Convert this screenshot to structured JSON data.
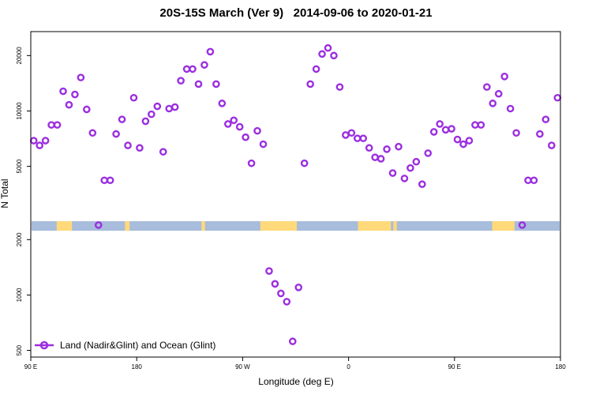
{
  "chart_data": {
    "type": "scatter",
    "title": "20S-15S March (Ver 9)   2014-09-06 to 2020-01-21",
    "xlabel": "Longitude (deg E)",
    "ylabel": "N Total",
    "y_scale": "log",
    "x_ticks": [
      "90 E",
      "180",
      "90 W",
      "0",
      "90 E",
      "180"
    ],
    "x_tick_values": [
      90,
      180,
      270,
      360,
      450,
      540
    ],
    "xlim": [
      90,
      540
    ],
    "y_ticks": [
      500,
      1000,
      2000,
      5000,
      10000,
      20000
    ],
    "ylim": [
      460,
      27000
    ],
    "grid": false,
    "legend": {
      "position": "bottom-left",
      "entries": [
        "Land (Nadir&Glint) and Ocean (Glint)"
      ]
    },
    "colors": {
      "series": "#9b2ee0",
      "ocean": "#a8bcdc",
      "land": "#ffd97a"
    },
    "series": [
      {
        "name": "Land (Nadir&Glint) and Ocean (Glint)",
        "x": [
          92.5,
          97.5,
          102.5,
          107.5,
          112.5,
          117.5,
          122.5,
          127.5,
          132.5,
          137.5,
          142.5,
          147.5,
          152.5,
          157.5,
          162.5,
          167.5,
          172.5,
          177.5,
          182.5,
          187.5,
          192.5,
          197.5,
          202.5,
          207.5,
          212.5,
          217.5,
          222.5,
          227.5,
          232.5,
          237.5,
          242.5,
          247.5,
          252.5,
          257.5,
          262.5,
          267.5,
          272.5,
          277.5,
          282.5,
          287.5,
          292.5,
          297.5,
          302.5,
          307.5,
          312.5,
          317.5,
          322.5,
          327.5,
          332.5,
          337.5,
          342.5,
          347.5,
          352.5,
          357.5,
          362.5,
          367.5,
          372.5,
          377.5,
          382.5,
          387.5,
          392.5,
          397.5,
          402.5,
          407.5,
          412.5,
          417.5,
          422.5,
          427.5,
          432.5,
          437.5,
          442.5,
          447.5,
          452.5,
          457.5,
          462.5,
          467.5,
          472.5,
          477.5,
          482.5,
          487.5,
          492.5,
          497.5,
          502.5,
          507.5,
          512.5,
          517.5,
          522.5,
          527.5,
          532.5,
          537.5
        ],
        "y": [
          6900,
          6500,
          6900,
          8400,
          8400,
          12800,
          10800,
          12300,
          15200,
          10200,
          7600,
          2400,
          4200,
          4200,
          7500,
          9000,
          6500,
          11800,
          6300,
          8800,
          9600,
          10600,
          6000,
          10300,
          10500,
          14600,
          16900,
          16900,
          14000,
          17800,
          21000,
          14000,
          11000,
          8500,
          8900,
          8200,
          7200,
          5200,
          7800,
          6600,
          1350,
          1150,
          1020,
          920,
          560,
          1100,
          5200,
          14000,
          16900,
          20400,
          22000,
          20000,
          13500,
          7400,
          7600,
          7100,
          7100,
          6300,
          5600,
          5500,
          6200,
          4600,
          6400,
          4300,
          4900,
          5300,
          4000,
          5900,
          7700,
          8500,
          7900,
          8000,
          7000,
          6600,
          6900,
          8400,
          8400,
          13500,
          11000,
          12400,
          15400,
          10300,
          7600,
          2400,
          4200,
          4200,
          7500,
          9000,
          6500,
          11800
        ]
      }
    ]
  }
}
